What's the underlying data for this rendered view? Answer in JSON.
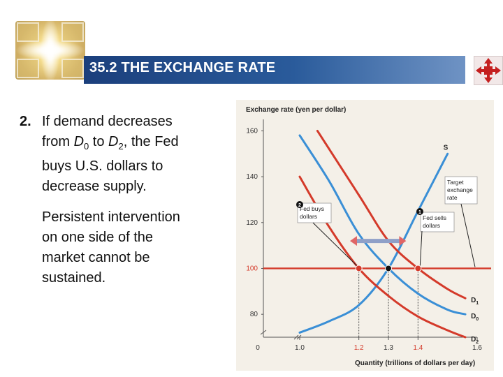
{
  "title": "35.2 THE EXCHANGE RATE",
  "bullet": {
    "number": "2.",
    "line1": "If demand decreases",
    "line2_pre": "from ",
    "d0_letter": "D",
    "d0_sub": "0",
    "line2_mid": " to ",
    "d2_letter": "D",
    "d2_sub": "2",
    "line2_post": ", the Fed",
    "line3": "buys U.S. dollars to",
    "line4": "decrease supply."
  },
  "paragraph": {
    "line1": "Persistent intervention",
    "line2": "on one side of the",
    "line3": "market cannot be",
    "line4": "sustained."
  },
  "colors": {
    "title_bar": "#1b3f7c",
    "supply_curve": "#3a8fd6",
    "d0_curve": "#3a8fd6",
    "d1_curve": "#d43a2a",
    "d2_curve": "#d43a2a",
    "target_line": "#d43a2a",
    "chart_bg": "#f4f0e8"
  },
  "chart_data": {
    "type": "line",
    "ylabel": "Exchange rate (yen per dollar)",
    "xlabel": "Quantity (trillions of dollars per day)",
    "ylim": [
      70,
      165
    ],
    "xlim": [
      1.0,
      1.6
    ],
    "y_ticks": [
      "160",
      "140",
      "120",
      "100",
      "80"
    ],
    "x_ticks": [
      "0",
      "1.0",
      "1.2",
      "1.3",
      "1.4",
      "1.6"
    ],
    "grid": false,
    "target_rate": 100,
    "series": [
      {
        "name": "S",
        "points": [
          [
            1.0,
            72
          ],
          [
            1.1,
            77
          ],
          [
            1.2,
            84
          ],
          [
            1.3,
            100
          ],
          [
            1.4,
            125
          ],
          [
            1.5,
            150
          ]
        ]
      },
      {
        "name": "D1",
        "points": [
          [
            1.06,
            160
          ],
          [
            1.2,
            132
          ],
          [
            1.3,
            112
          ],
          [
            1.4,
            100
          ],
          [
            1.5,
            91
          ],
          [
            1.56,
            87
          ]
        ]
      },
      {
        "name": "D0",
        "points": [
          [
            1.0,
            158
          ],
          [
            1.1,
            138
          ],
          [
            1.2,
            115
          ],
          [
            1.3,
            100
          ],
          [
            1.4,
            89
          ],
          [
            1.5,
            82
          ],
          [
            1.56,
            80
          ]
        ]
      },
      {
        "name": "D2",
        "points": [
          [
            1.0,
            140
          ],
          [
            1.1,
            118
          ],
          [
            1.2,
            100
          ],
          [
            1.3,
            88
          ],
          [
            1.4,
            79
          ],
          [
            1.5,
            73
          ],
          [
            1.56,
            70
          ]
        ]
      }
    ],
    "curve_labels": [
      "S",
      "D",
      "D",
      "D"
    ],
    "curve_label_subs": [
      "",
      "1",
      "0",
      "2"
    ],
    "points": [
      {
        "x": 1.2,
        "y": 100
      },
      {
        "x": 1.3,
        "y": 100
      },
      {
        "x": 1.4,
        "y": 100
      }
    ],
    "annotations": {
      "target_label": [
        "Target",
        "exchange",
        "rate"
      ],
      "fed_buys": [
        "Fed buys",
        "dollars"
      ],
      "fed_sells": [
        "Fed sells",
        "dollars"
      ],
      "marker_buys": "2",
      "marker_sells": "1"
    }
  }
}
